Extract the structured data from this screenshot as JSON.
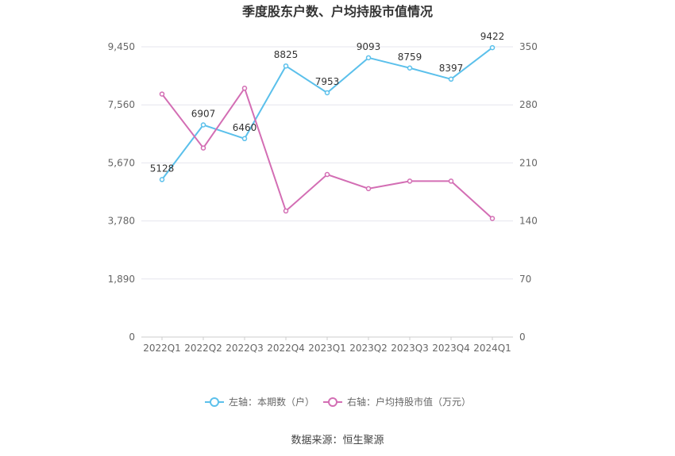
{
  "chart_data": {
    "type": "line",
    "title": "季度股东户数、户均持股市值情况",
    "categories": [
      "2022Q1",
      "2022Q2",
      "2022Q3",
      "2022Q4",
      "2023Q1",
      "2023Q2",
      "2023Q3",
      "2023Q4",
      "2024Q1"
    ],
    "left_axis": {
      "ticks": [
        "0",
        "1,890",
        "3,780",
        "5,670",
        "7,560",
        "9,450"
      ],
      "ylim": [
        0,
        9450
      ]
    },
    "right_axis": {
      "ticks": [
        "0",
        "70",
        "140",
        "210",
        "280",
        "350"
      ],
      "ylim": [
        0,
        350
      ]
    },
    "series": [
      {
        "name": "左轴：本期数（户）",
        "axis": "left",
        "color": "#5bc0eb",
        "values": [
          5128,
          6907,
          6460,
          8825,
          7953,
          9093,
          8759,
          8397,
          9422
        ],
        "labels": [
          "5128",
          "6907",
          "6460",
          "8825",
          "7953",
          "9093",
          "8759",
          "8397",
          "9422"
        ]
      },
      {
        "name": "右轴：户均持股市值（万元）",
        "axis": "right",
        "color": "#d36eb4",
        "values": [
          293,
          228,
          300,
          152,
          196,
          179,
          188,
          188,
          143
        ]
      }
    ],
    "grid": true,
    "legend_position": "bottom"
  },
  "source_text": "数据来源：恒生聚源"
}
